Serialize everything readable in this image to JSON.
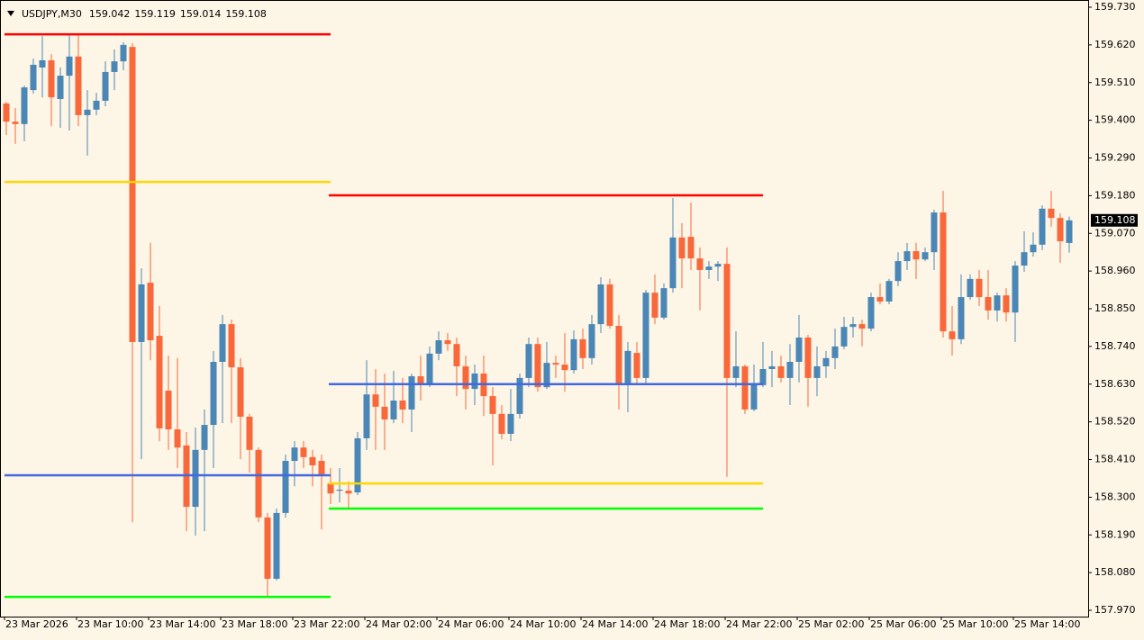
{
  "chart_data": {
    "type": "candlestick",
    "symbol": "USDJPY,M30",
    "up_color": "#4a86b6",
    "down_color": "#f8683a",
    "grid": false,
    "ylim": [
      157.97,
      159.73
    ],
    "yticks": [
      {
        "value": 159.73,
        "label": "159.730"
      },
      {
        "value": 159.62,
        "label": "159.620"
      },
      {
        "value": 159.51,
        "label": "159.510"
      },
      {
        "value": 159.4,
        "label": "159.400"
      },
      {
        "value": 159.29,
        "label": "159.290"
      },
      {
        "value": 159.18,
        "label": "159.180"
      },
      {
        "value": 159.07,
        "label": "159.070"
      },
      {
        "value": 158.96,
        "label": "158.960"
      },
      {
        "value": 158.85,
        "label": "158.850"
      },
      {
        "value": 158.74,
        "label": "158.740"
      },
      {
        "value": 158.63,
        "label": "158.630"
      },
      {
        "value": 158.52,
        "label": "158.520"
      },
      {
        "value": 158.41,
        "label": "158.410"
      },
      {
        "value": 158.3,
        "label": "158.300"
      },
      {
        "value": 158.19,
        "label": "158.190"
      },
      {
        "value": 158.08,
        "label": "158.080"
      },
      {
        "value": 157.97,
        "label": "157.970"
      }
    ],
    "categories": [
      "23 Mar 2026",
      null,
      null,
      null,
      null,
      null,
      null,
      null,
      "23 Mar 10:00",
      null,
      null,
      null,
      null,
      null,
      null,
      null,
      "23 Mar 14:00",
      null,
      null,
      null,
      null,
      null,
      null,
      null,
      "23 Mar 18:00",
      null,
      null,
      null,
      null,
      null,
      null,
      null,
      "23 Mar 22:00",
      null,
      null,
      null,
      null,
      null,
      null,
      null,
      "24 Mar 02:00",
      null,
      null,
      null,
      null,
      null,
      null,
      null,
      "24 Mar 06:00",
      null,
      null,
      null,
      null,
      null,
      null,
      null,
      "24 Mar 10:00",
      null,
      null,
      null,
      null,
      null,
      null,
      null,
      "24 Mar 14:00",
      null,
      null,
      null,
      null,
      null,
      null,
      null,
      "24 Mar 18:00",
      null,
      null,
      null,
      null,
      null,
      null,
      null,
      "24 Mar 22:00",
      null,
      null,
      null,
      null,
      null,
      null,
      null,
      "25 Mar 02:00",
      null,
      null,
      null,
      null,
      null,
      null,
      null,
      "25 Mar 06:00",
      null,
      null,
      null,
      null,
      null,
      null,
      null,
      "25 Mar 10:00",
      null,
      null,
      null,
      null,
      null,
      null,
      null,
      "25 Mar 14:00",
      null,
      null,
      null,
      null,
      null,
      null
    ],
    "open": [
      159.449,
      159.396,
      159.389,
      159.488,
      159.554,
      159.575,
      159.462,
      159.53,
      159.586,
      159.415,
      159.431,
      159.457,
      159.541,
      159.572,
      159.614,
      158.753,
      158.926,
      158.771,
      158.611,
      158.498,
      158.451,
      158.272,
      158.438,
      158.511,
      158.695,
      158.805,
      158.679,
      158.535,
      158.438,
      158.241,
      158.062,
      158.254,
      158.406,
      158.445,
      158.417,
      158.406,
      158.34,
      158.319,
      158.319,
      158.314,
      158.472,
      158.6,
      158.564,
      158.527,
      158.582,
      158.556,
      158.653,
      158.632,
      158.719,
      158.758,
      158.747,
      158.682,
      158.616,
      158.661,
      158.595,
      158.543,
      158.485,
      158.543,
      158.648,
      158.747,
      158.621,
      158.692,
      158.687,
      158.671,
      158.761,
      158.706,
      158.805,
      158.921,
      158.8,
      158.627,
      158.721,
      158.648,
      158.897,
      158.824,
      158.91,
      159.058,
      159.06,
      158.997,
      158.963,
      158.973,
      158.981,
      158.648,
      158.682,
      158.556,
      158.627,
      158.674,
      158.682,
      158.648,
      158.695,
      158.766,
      158.648,
      158.682,
      158.706,
      158.74,
      158.797,
      158.805,
      158.792,
      158.884,
      158.871,
      158.931,
      158.989,
      159.018,
      158.994,
      159.015,
      159.131,
      158.784,
      158.761,
      158.884,
      158.937,
      158.884,
      158.845,
      158.889,
      158.839,
      158.976,
      159.015,
      159.037,
      159.142,
      159.115,
      159.042
    ],
    "high": [
      159.454,
      159.436,
      159.501,
      159.58,
      159.646,
      159.593,
      159.554,
      159.651,
      159.651,
      159.488,
      159.48,
      159.572,
      159.607,
      159.628,
      159.625,
      158.968,
      159.042,
      158.858,
      158.713,
      158.706,
      158.49,
      158.503,
      158.556,
      158.727,
      158.832,
      158.818,
      158.706,
      158.543,
      158.445,
      158.254,
      158.267,
      158.424,
      158.464,
      158.464,
      158.438,
      158.424,
      158.385,
      158.385,
      158.346,
      158.49,
      158.7,
      158.674,
      158.661,
      158.669,
      158.648,
      158.661,
      158.713,
      158.74,
      158.784,
      158.779,
      158.766,
      158.713,
      158.687,
      158.713,
      158.621,
      158.569,
      158.616,
      158.661,
      158.766,
      158.766,
      158.753,
      158.713,
      158.779,
      158.787,
      158.792,
      158.832,
      158.942,
      158.937,
      158.832,
      158.753,
      158.753,
      158.905,
      158.95,
      158.924,
      159.173,
      159.1,
      159.16,
      159.029,
      158.989,
      158.989,
      159.029,
      158.784,
      158.687,
      158.687,
      158.753,
      158.727,
      158.713,
      158.747,
      158.832,
      158.774,
      158.74,
      158.727,
      158.792,
      158.826,
      158.826,
      158.818,
      158.897,
      158.924,
      158.937,
      159.015,
      159.042,
      159.042,
      159.029,
      159.139,
      159.194,
      158.858,
      158.95,
      158.95,
      158.963,
      158.963,
      158.897,
      158.91,
      158.989,
      159.076,
      159.073,
      159.152,
      159.194,
      159.128,
      159.119
    ],
    "low": [
      159.357,
      159.331,
      159.339,
      159.478,
      159.467,
      159.383,
      159.378,
      159.37,
      159.383,
      159.297,
      159.415,
      159.441,
      159.488,
      159.546,
      158.227,
      158.411,
      158.7,
      158.464,
      158.438,
      158.385,
      158.201,
      158.188,
      158.201,
      158.385,
      158.516,
      158.516,
      158.411,
      158.372,
      158.227,
      158.009,
      158.057,
      158.241,
      158.332,
      158.385,
      158.332,
      158.206,
      158.28,
      158.285,
      158.267,
      158.306,
      158.438,
      158.438,
      158.438,
      158.516,
      158.516,
      158.49,
      158.582,
      158.621,
      158.7,
      158.727,
      158.595,
      158.556,
      158.569,
      158.537,
      158.393,
      158.469,
      158.464,
      158.53,
      158.621,
      158.608,
      158.616,
      158.648,
      158.608,
      158.661,
      158.674,
      158.687,
      158.779,
      158.792,
      158.556,
      158.548,
      158.627,
      158.627,
      158.805,
      158.818,
      158.897,
      158.91,
      158.963,
      158.845,
      158.937,
      158.931,
      158.359,
      158.621,
      158.543,
      158.551,
      158.621,
      158.621,
      158.635,
      158.569,
      158.635,
      158.564,
      158.595,
      158.648,
      158.674,
      158.732,
      158.766,
      158.74,
      158.784,
      158.863,
      158.863,
      158.916,
      158.963,
      158.937,
      158.989,
      158.963,
      158.766,
      158.713,
      158.747,
      158.876,
      158.858,
      158.818,
      158.813,
      158.813,
      158.753,
      158.958,
      159.002,
      159.021,
      159.089,
      158.984,
      159.014
    ],
    "close": [
      159.396,
      159.389,
      159.496,
      159.562,
      159.575,
      159.467,
      159.53,
      159.586,
      159.415,
      159.431,
      159.457,
      159.541,
      159.572,
      159.62,
      158.753,
      158.921,
      158.758,
      158.501,
      158.498,
      158.445,
      158.272,
      158.438,
      158.511,
      158.695,
      158.805,
      158.679,
      158.535,
      158.438,
      158.241,
      158.062,
      158.254,
      158.406,
      158.445,
      158.417,
      158.393,
      158.367,
      158.311,
      158.322,
      158.311,
      158.472,
      158.6,
      158.564,
      158.527,
      158.582,
      158.556,
      158.653,
      158.632,
      158.719,
      158.758,
      158.747,
      158.682,
      158.616,
      158.661,
      158.595,
      158.543,
      158.485,
      158.543,
      158.648,
      158.747,
      158.621,
      158.692,
      158.687,
      158.671,
      158.761,
      158.706,
      158.805,
      158.921,
      158.8,
      158.627,
      158.727,
      158.648,
      158.897,
      158.824,
      158.91,
      159.058,
      158.997,
      158.997,
      158.963,
      158.973,
      158.981,
      158.648,
      158.682,
      158.556,
      158.627,
      158.674,
      158.682,
      158.648,
      158.695,
      158.766,
      158.648,
      158.682,
      158.706,
      158.74,
      158.797,
      158.805,
      158.792,
      158.884,
      158.871,
      158.931,
      158.989,
      159.018,
      158.994,
      159.015,
      159.131,
      158.784,
      158.761,
      158.884,
      158.937,
      158.884,
      158.845,
      158.889,
      158.839,
      158.976,
      159.015,
      159.037,
      159.142,
      159.115,
      159.047,
      159.108
    ],
    "levels": [
      {
        "start": 0,
        "end": 36,
        "lines": [
          {
            "color": "#ff0000",
            "value": 159.651
          },
          {
            "color": "#ffd700",
            "value": 159.22
          },
          {
            "color": "#4169e1",
            "value": 158.364
          },
          {
            "color": "#00ff00",
            "value": 158.009
          }
        ]
      },
      {
        "start": 36,
        "end": 84,
        "lines": [
          {
            "color": "#ff0000",
            "value": 159.181
          },
          {
            "color": "#4169e1",
            "value": 158.63
          },
          {
            "color": "#ffd700",
            "value": 158.34
          },
          {
            "color": "#00ff00",
            "value": 158.267
          }
        ]
      }
    ]
  }
}
